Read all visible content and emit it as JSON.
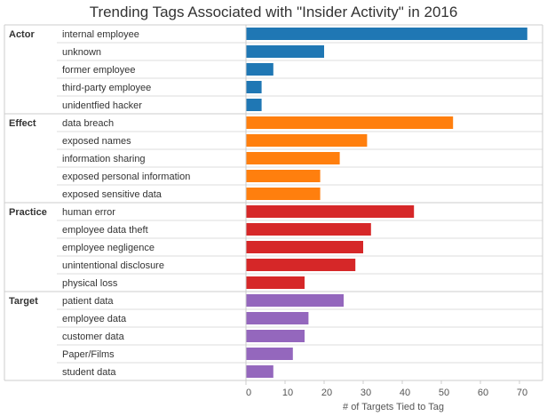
{
  "chart_data": {
    "type": "bar",
    "orientation": "horizontal",
    "title": "Trending Tags Associated with \"Insider Activity\" in 2016",
    "xlabel": "# of Targets Tied to Tag",
    "ylabel": "",
    "xlim": [
      0,
      76
    ],
    "xticks": [
      0,
      10,
      20,
      30,
      40,
      50,
      60,
      70
    ],
    "grid": false,
    "groups": [
      {
        "name": "Actor",
        "color": "#1f77b4",
        "categories": [
          "internal employee",
          "unknown",
          "former employee",
          "third-party employee",
          "unidentfied hacker"
        ],
        "values": [
          72,
          20,
          7,
          4,
          4
        ]
      },
      {
        "name": "Effect",
        "color": "#ff7f0e",
        "categories": [
          "data breach",
          "exposed names",
          "information sharing",
          "exposed personal information",
          "exposed sensitive data"
        ],
        "values": [
          53,
          31,
          24,
          19,
          19
        ]
      },
      {
        "name": "Practice",
        "color": "#d62728",
        "categories": [
          "human error",
          "employee data theft",
          "employee negligence",
          "unintentional disclosure",
          "physical loss"
        ],
        "values": [
          43,
          32,
          30,
          28,
          15
        ]
      },
      {
        "name": "Target",
        "color": "#9467bd",
        "categories": [
          "patient data",
          "employee data",
          "customer data",
          "Paper/Films",
          "student data"
        ],
        "values": [
          25,
          16,
          15,
          12,
          7
        ]
      }
    ]
  }
}
